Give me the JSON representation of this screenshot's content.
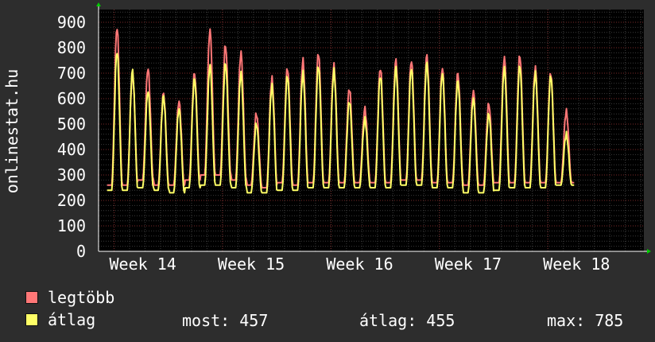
{
  "chart_data": {
    "type": "line",
    "title": "",
    "ylabel": "onlinestat.hu",
    "xlabel": "",
    "ylim": [
      0,
      950
    ],
    "yticks": [
      0,
      100,
      200,
      300,
      400,
      500,
      600,
      700,
      800,
      900
    ],
    "xlim_days": [
      0,
      35.2
    ],
    "x_ticks": [
      {
        "day": 1,
        "label": "Week 14"
      },
      {
        "day": 8,
        "label": "Week 15"
      },
      {
        "day": 15,
        "label": "Week 16"
      },
      {
        "day": 22,
        "label": "Week 17"
      },
      {
        "day": 29,
        "label": "Week 18"
      }
    ],
    "grid": true,
    "background": "#000000",
    "series": [
      {
        "name": "legtöbb",
        "color": "#ff7777",
        "daily_peaks": [
          880,
          700,
          720,
          620,
          590,
          700,
          870,
          810,
          780,
          540,
          680,
          720,
          750,
          780,
          730,
          640,
          560,
          720,
          750,
          750,
          770,
          720,
          700,
          630,
          580,
          760,
          770,
          720,
          700,
          550
        ],
        "daily_troughs": [
          260,
          260,
          280,
          260,
          260,
          280,
          300,
          300,
          280,
          260,
          250,
          270,
          260,
          270,
          270,
          270,
          270,
          270,
          270,
          280,
          280,
          270,
          270,
          260,
          260,
          270,
          270,
          270,
          270,
          270
        ]
      },
      {
        "name": "átlag",
        "color": "#ffff66",
        "daily_peaks": [
          785,
          710,
          630,
          610,
          560,
          680,
          730,
          740,
          700,
          500,
          650,
          690,
          700,
          730,
          710,
          590,
          520,
          690,
          720,
          720,
          740,
          700,
          670,
          600,
          540,
          720,
          730,
          700,
          690,
          460
        ],
        "daily_troughs": [
          240,
          240,
          250,
          240,
          230,
          250,
          260,
          260,
          250,
          230,
          230,
          240,
          240,
          250,
          250,
          250,
          250,
          250,
          250,
          260,
          260,
          250,
          250,
          230,
          230,
          240,
          250,
          250,
          250,
          260
        ]
      }
    ]
  },
  "legend": {
    "series1_label": "legtöbb",
    "series1_color": "#ff7777",
    "series2_label": "átlag",
    "series2_color": "#ffff66",
    "most_label": "most:",
    "most_value": "457",
    "atlag_label": "átlag:",
    "atlag_value": "455",
    "max_label": "max:",
    "max_value": "785"
  }
}
